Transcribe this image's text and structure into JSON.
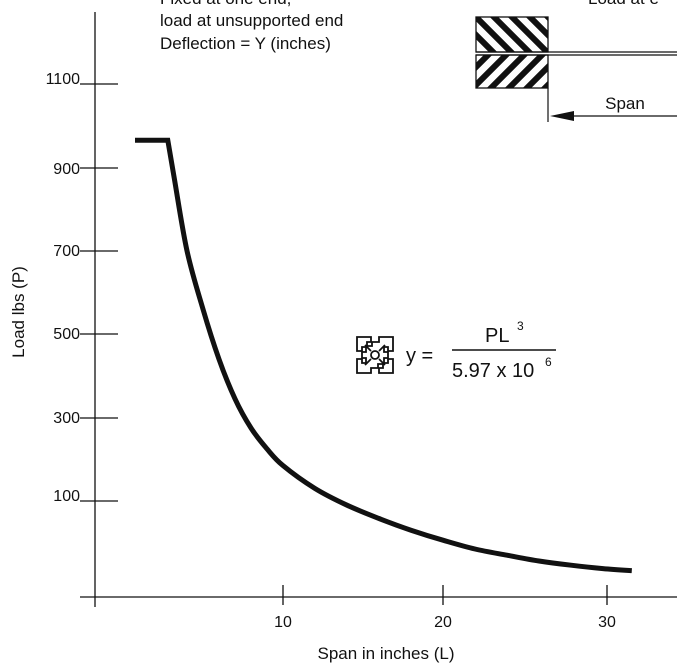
{
  "chart_data": {
    "type": "line",
    "xlabel": "Span in inches (L)",
    "ylabel": "Load lbs (P)",
    "x_ticks": [
      "10",
      "20",
      "30"
    ],
    "y_ticks": [
      "100",
      "300",
      "500",
      "700",
      "900",
      "1100"
    ],
    "xlim": [
      -1,
      34
    ],
    "ylim": [
      -140,
      1230
    ],
    "grid": false,
    "series": [
      {
        "x": [
          1.5,
          2.8,
          3.2,
          4,
          5,
          6,
          7,
          8,
          9,
          10,
          12,
          14,
          16,
          18,
          20,
          22,
          24,
          26,
          28,
          30,
          31.8
        ],
        "y": [
          965,
          965,
          875,
          700,
          560,
          440,
          345,
          275,
          225,
          185,
          130,
          90,
          58,
          30,
          6,
          -15,
          -30,
          -44,
          -54,
          -62,
          -67
        ]
      }
    ],
    "annotations": {
      "note_lines": [
        "Fixed at one end,",
        "load at unsupported end",
        "Deflection = Y (inches)"
      ],
      "top_right_text": "Load at e",
      "span_label": "Span",
      "formula": {
        "lhs": "y =",
        "numerator": "PL",
        "numerator_exp": "3",
        "denominator": "5.97 x 10",
        "denominator_exp": "6"
      },
      "profile_icon": "t-slot-profile-icon"
    }
  }
}
